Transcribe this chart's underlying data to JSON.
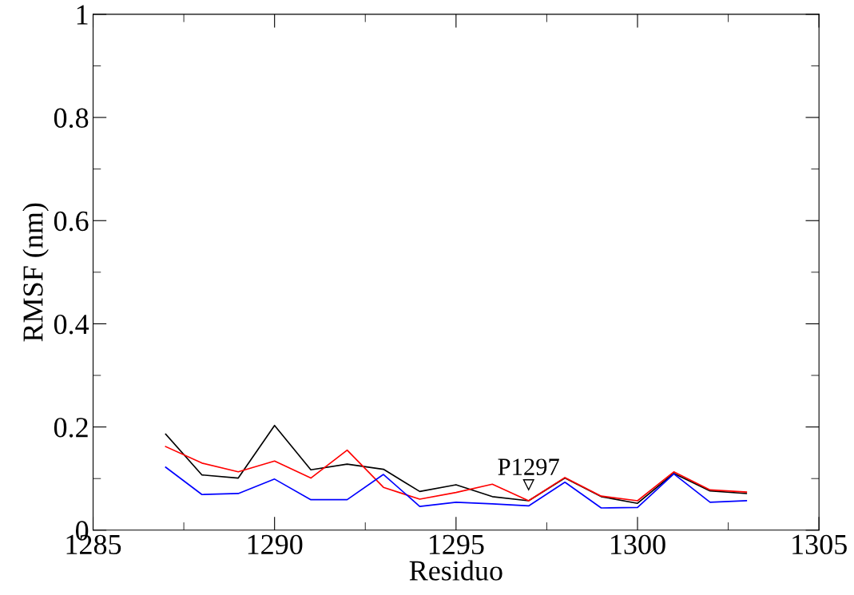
{
  "chart_data": {
    "type": "line",
    "xlabel": "Residuo",
    "ylabel": "RMSF (nm)",
    "x": [
      1287,
      1288,
      1289,
      1290,
      1291,
      1292,
      1293,
      1294,
      1295,
      1296,
      1297,
      1298,
      1299,
      1300,
      1301,
      1302,
      1303
    ],
    "series": [
      {
        "color": "#000000",
        "values": [
          0.186,
          0.107,
          0.101,
          0.203,
          0.117,
          0.128,
          0.118,
          0.075,
          0.088,
          0.065,
          0.057,
          0.101,
          0.065,
          0.052,
          0.11,
          0.076,
          0.071
        ]
      },
      {
        "color": "#ff0000",
        "values": [
          0.162,
          0.13,
          0.113,
          0.134,
          0.101,
          0.155,
          0.083,
          0.06,
          0.073,
          0.089,
          0.057,
          0.102,
          0.066,
          0.057,
          0.113,
          0.078,
          0.074
        ]
      },
      {
        "color": "#0000ff",
        "values": [
          0.122,
          0.069,
          0.071,
          0.099,
          0.059,
          0.059,
          0.108,
          0.046,
          0.054,
          0.051,
          0.047,
          0.093,
          0.043,
          0.044,
          0.109,
          0.054,
          0.057
        ]
      }
    ],
    "xlim": [
      1285,
      1305
    ],
    "xticks": [
      1285,
      1290,
      1295,
      1300,
      1305
    ],
    "ylim": [
      0,
      1
    ],
    "yticks": [
      0,
      0.2,
      0.4,
      0.6,
      0.8,
      1
    ],
    "annotations": [
      {
        "text": "P1297",
        "x": 1297,
        "y": 0.057
      }
    ],
    "grid": false,
    "legend": false
  }
}
